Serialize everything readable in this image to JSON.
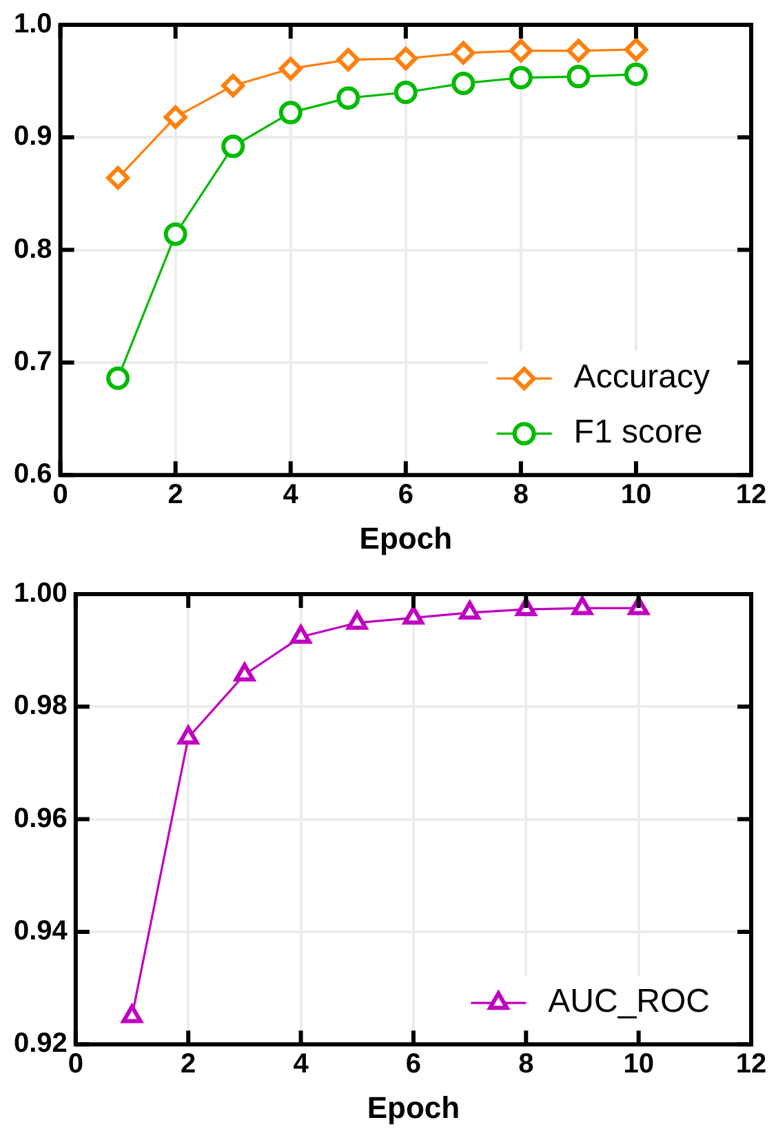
{
  "chart_data": [
    {
      "type": "line",
      "xlabel": "Epoch",
      "x": [
        1,
        2,
        3,
        4,
        5,
        6,
        7,
        8,
        9,
        10
      ],
      "series": [
        {
          "name": "Accuracy",
          "color": "#ff7f0e",
          "marker": "diamond",
          "values": [
            0.864,
            0.918,
            0.946,
            0.961,
            0.969,
            0.97,
            0.975,
            0.977,
            0.977,
            0.978
          ]
        },
        {
          "name": "F1 score",
          "color": "#00bb00",
          "marker": "circle",
          "values": [
            0.686,
            0.814,
            0.892,
            0.922,
            0.935,
            0.94,
            0.948,
            0.953,
            0.954,
            0.956
          ]
        }
      ],
      "xlim": [
        0,
        12
      ],
      "xticks": [
        0,
        2,
        4,
        6,
        8,
        10,
        12
      ],
      "ylim": [
        0.6,
        1.0
      ],
      "yticks": [
        0.6,
        0.7,
        0.8,
        0.9,
        {
          "value": 1.0,
          "label": "1.0"
        }
      ],
      "grid": true,
      "legend": "bottom right",
      "line_style": "solid"
    },
    {
      "type": "line",
      "xlabel": "Epoch",
      "x": [
        1,
        2,
        3,
        4,
        5,
        6,
        7,
        8,
        9,
        10
      ],
      "series": [
        {
          "name": "AUC_ROC",
          "color": "#c000c0",
          "marker": "triangle",
          "values": [
            0.925,
            0.9745,
            0.9857,
            0.9924,
            0.9949,
            0.9958,
            0.9967,
            0.9973,
            0.9975,
            0.9975
          ]
        }
      ],
      "xlim": [
        0,
        12
      ],
      "xticks": [
        0,
        2,
        4,
        6,
        8,
        10,
        12
      ],
      "ylim": [
        0.92,
        1.0
      ],
      "yticks": [
        0.92,
        0.94,
        0.96,
        0.98,
        {
          "value": 1.0,
          "label": "1.00"
        }
      ],
      "grid": true,
      "legend": "bottom right",
      "line_style": "solid"
    }
  ]
}
